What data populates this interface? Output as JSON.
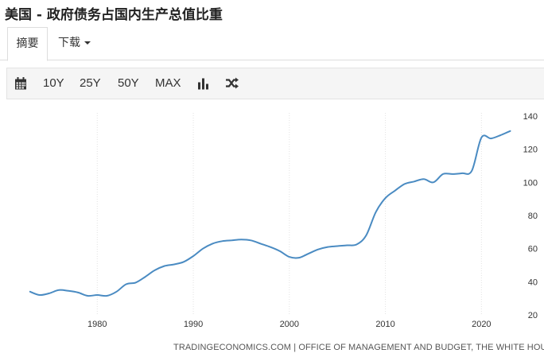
{
  "page": {
    "title": "美国 - 政府债务占国内生产总值比重"
  },
  "tabs": [
    {
      "label": "摘要",
      "active": true
    },
    {
      "label": "下载",
      "active": false
    }
  ],
  "toolbar": {
    "calendar_icon": "calendar-icon",
    "ranges": [
      "10Y",
      "25Y",
      "50Y",
      "MAX"
    ],
    "chart_type_icon": "bar-chart-icon",
    "compare_icon": "shuffle-icon"
  },
  "chart_data": {
    "type": "line",
    "color": "#4a8bc2",
    "x_ticks": [
      "1980",
      "1990",
      "2000",
      "2010",
      "2020"
    ],
    "y_ticks": [
      "20",
      "40",
      "60",
      "80",
      "100",
      "120",
      "140"
    ],
    "xlim": [
      1970.7,
      2023.7
    ],
    "ylim": [
      20,
      140
    ],
    "y_axis_side": "right",
    "grid": "vertical-dotted",
    "x": [
      1973,
      1974,
      1975,
      1976,
      1977,
      1978,
      1979,
      1980,
      1981,
      1982,
      1983,
      1984,
      1985,
      1986,
      1987,
      1988,
      1989,
      1990,
      1991,
      1992,
      1993,
      1994,
      1995,
      1996,
      1997,
      1998,
      1999,
      2000,
      2001,
      2002,
      2003,
      2004,
      2005,
      2006,
      2007,
      2008,
      2009,
      2010,
      2011,
      2012,
      2013,
      2014,
      2015,
      2016,
      2017,
      2018,
      2019,
      2020,
      2021,
      2022,
      2023
    ],
    "values": [
      34,
      32,
      33,
      35,
      34.5,
      33.5,
      31.5,
      32,
      31.5,
      34,
      38.5,
      39.5,
      43,
      47,
      49.5,
      50.5,
      52,
      55.5,
      60,
      63,
      64.5,
      65,
      65.5,
      65,
      63,
      61,
      58.5,
      55,
      54.5,
      57,
      59.5,
      61,
      61.5,
      62,
      62.5,
      68,
      82,
      90.5,
      95,
      99,
      100.5,
      102,
      100,
      105,
      105,
      105.5,
      107,
      127,
      126.5,
      128.5,
      131
    ]
  },
  "source": "TRADINGECONOMICS.COM | OFFICE OF MANAGEMENT AND BUDGET, THE WHITE HOUSE"
}
